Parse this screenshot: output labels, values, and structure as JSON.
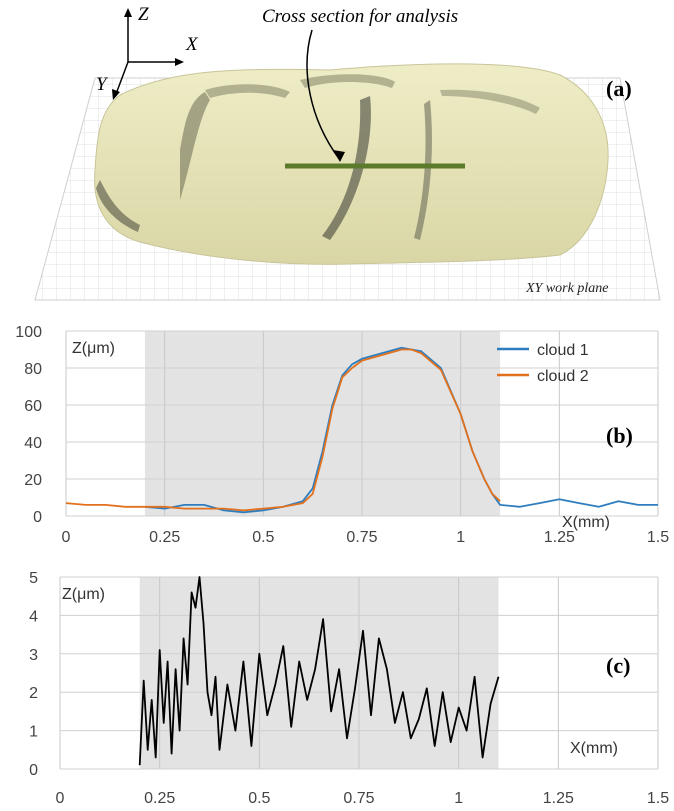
{
  "figure": {
    "panel_a": {
      "annotation": "Cross section for analysis",
      "plane_label": "XY work plane",
      "axis_z": "Z",
      "axis_x": "X",
      "axis_y": "Y",
      "panel_letter": "(a)"
    },
    "panel_b": {
      "panel_letter": "(b)"
    },
    "panel_c": {
      "panel_letter": "(c)"
    }
  },
  "chart_data": [
    {
      "type": "line",
      "panel": "(b)",
      "ylabel": "Z(μm)",
      "xlabel": "X(mm)",
      "xlim": [
        0,
        1.5
      ],
      "ylim": [
        0,
        100
      ],
      "xticks": [
        "0",
        "0.25",
        "0.5",
        "0.75",
        "1",
        "1.25",
        "1.5"
      ],
      "yticks": [
        "0",
        "20",
        "40",
        "60",
        "80",
        "100"
      ],
      "shaded_region": [
        0.2,
        1.1
      ],
      "legend_position": "top-right",
      "series": [
        {
          "name": "cloud 1",
          "color": "#2e7ebf",
          "x": [
            0.2,
            0.25,
            0.3,
            0.35,
            0.4,
            0.45,
            0.5,
            0.55,
            0.6,
            0.625,
            0.65,
            0.675,
            0.7,
            0.725,
            0.75,
            0.8,
            0.85,
            0.875,
            0.9,
            0.95,
            1.0,
            1.03,
            1.06,
            1.08,
            1.1,
            1.15,
            1.2,
            1.25,
            1.3,
            1.35,
            1.4,
            1.45,
            1.5
          ],
          "y": [
            5,
            4,
            6,
            6,
            3,
            2,
            3,
            5,
            8,
            15,
            35,
            60,
            76,
            82,
            85,
            88,
            91,
            90,
            89,
            80,
            55,
            35,
            20,
            12,
            6,
            5,
            7,
            9,
            7,
            5,
            8,
            6,
            6
          ]
        },
        {
          "name": "cloud 2",
          "color": "#e2711d",
          "x": [
            0,
            0.05,
            0.1,
            0.15,
            0.2,
            0.25,
            0.3,
            0.35,
            0.4,
            0.45,
            0.5,
            0.55,
            0.6,
            0.625,
            0.65,
            0.675,
            0.7,
            0.725,
            0.75,
            0.8,
            0.85,
            0.875,
            0.9,
            0.95,
            1.0,
            1.03,
            1.06,
            1.08,
            1.1
          ],
          "y": [
            7,
            6,
            6,
            5,
            5,
            5,
            4,
            4,
            4,
            3,
            4,
            5,
            7,
            12,
            32,
            58,
            75,
            80,
            84,
            87,
            90,
            90,
            88,
            79,
            55,
            35,
            20,
            12,
            8
          ]
        }
      ]
    },
    {
      "type": "line",
      "panel": "(c)",
      "ylabel": "Z(μm)",
      "xlabel": "X(mm)",
      "xlim": [
        0,
        1.5
      ],
      "ylim": [
        0,
        5
      ],
      "xticks": [
        "0",
        "0.25",
        "0.5",
        "0.75",
        "1",
        "1.25",
        "1.5"
      ],
      "yticks": [
        "0",
        "1",
        "2",
        "3",
        "4",
        "5"
      ],
      "shaded_region": [
        0.2,
        1.1
      ],
      "series": [
        {
          "color": "#000000",
          "x": [
            0.2,
            0.21,
            0.22,
            0.23,
            0.24,
            0.25,
            0.26,
            0.27,
            0.28,
            0.29,
            0.3,
            0.31,
            0.32,
            0.33,
            0.34,
            0.35,
            0.36,
            0.37,
            0.38,
            0.39,
            0.4,
            0.42,
            0.44,
            0.46,
            0.48,
            0.5,
            0.52,
            0.54,
            0.56,
            0.58,
            0.6,
            0.62,
            0.64,
            0.66,
            0.68,
            0.7,
            0.72,
            0.74,
            0.76,
            0.78,
            0.8,
            0.82,
            0.84,
            0.86,
            0.88,
            0.9,
            0.92,
            0.94,
            0.96,
            0.98,
            1.0,
            1.02,
            1.04,
            1.06,
            1.08,
            1.1
          ],
          "y": [
            0.1,
            2.3,
            0.5,
            1.8,
            0.3,
            3.1,
            1.2,
            2.8,
            0.4,
            2.6,
            1.0,
            3.4,
            2.2,
            4.6,
            4.2,
            5.0,
            3.8,
            2.0,
            1.4,
            2.4,
            0.5,
            2.2,
            1.0,
            2.8,
            0.6,
            3.0,
            1.4,
            2.2,
            3.2,
            1.1,
            2.8,
            1.8,
            2.6,
            3.9,
            1.5,
            2.6,
            0.8,
            2.1,
            3.6,
            1.4,
            3.4,
            2.6,
            1.2,
            2.0,
            0.8,
            1.3,
            2.1,
            0.6,
            2.0,
            0.7,
            1.6,
            1.0,
            2.4,
            0.3,
            1.7,
            2.4
          ]
        }
      ]
    }
  ]
}
